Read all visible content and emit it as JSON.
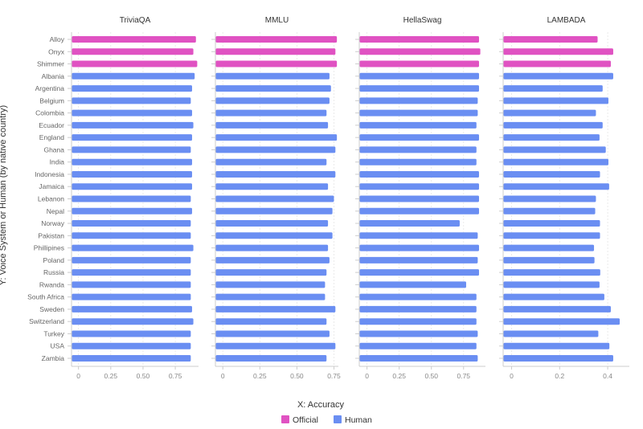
{
  "chart_data": {
    "type": "bar",
    "orientation": "horizontal",
    "xlabel": "X: Accuracy",
    "ylabel": "Y: Voice System or Human (by native country)",
    "legend": {
      "placement": "bottom",
      "entries": [
        {
          "name": "Official",
          "color": "#e052c2"
        },
        {
          "name": "Human",
          "color": "#6a8ef2"
        }
      ]
    },
    "grid": true,
    "categories": [
      "Alloy",
      "Onyx",
      "Shimmer",
      "Albania",
      "Argentina",
      "Belgium",
      "Colombia",
      "Ecuador",
      "England",
      "Ghana",
      "India",
      "Indonesia",
      "Jamaica",
      "Lebanon",
      "Nepal",
      "Norway",
      "Pakistan",
      "Phillipines",
      "Poland",
      "Russia",
      "Rwanda",
      "South Africa",
      "Sweden",
      "Switzerland",
      "Turkey",
      "USA",
      "Zambia"
    ],
    "groups": [
      "Official",
      "Official",
      "Official",
      "Human",
      "Human",
      "Human",
      "Human",
      "Human",
      "Human",
      "Human",
      "Human",
      "Human",
      "Human",
      "Human",
      "Human",
      "Human",
      "Human",
      "Human",
      "Human",
      "Human",
      "Human",
      "Human",
      "Human",
      "Human",
      "Human",
      "Human",
      "Human"
    ],
    "panels": [
      {
        "title": "TriviaQA",
        "xlim": [
          -0.054,
          0.93
        ],
        "ticks": [
          0,
          0.25,
          0.5,
          0.75
        ],
        "tick_labels": [
          "0",
          "0.25",
          "0.50",
          "0.75"
        ],
        "values": [
          0.91,
          0.89,
          0.92,
          0.9,
          0.88,
          0.87,
          0.88,
          0.89,
          0.88,
          0.87,
          0.88,
          0.88,
          0.88,
          0.87,
          0.88,
          0.87,
          0.87,
          0.89,
          0.87,
          0.87,
          0.87,
          0.87,
          0.88,
          0.89,
          0.87,
          0.87,
          0.87
        ]
      },
      {
        "title": "MMLU",
        "xlim": [
          -0.05,
          0.78
        ],
        "ticks": [
          0,
          0.25,
          0.5,
          0.75
        ],
        "tick_labels": [
          "0",
          "0.25",
          "0.50",
          "0.75"
        ],
        "values": [
          0.77,
          0.76,
          0.77,
          0.72,
          0.73,
          0.72,
          0.7,
          0.71,
          0.77,
          0.76,
          0.7,
          0.76,
          0.71,
          0.75,
          0.74,
          0.71,
          0.74,
          0.71,
          0.72,
          0.7,
          0.69,
          0.69,
          0.76,
          0.7,
          0.72,
          0.76,
          0.7
        ]
      },
      {
        "title": "HellaSwag",
        "xlim": [
          -0.06,
          0.92
        ],
        "ticks": [
          0,
          0.25,
          0.5,
          0.75
        ],
        "tick_labels": [
          "0",
          "0.25",
          "0.50",
          "0.75"
        ],
        "values": [
          0.87,
          0.88,
          0.87,
          0.87,
          0.87,
          0.86,
          0.86,
          0.85,
          0.87,
          0.85,
          0.85,
          0.87,
          0.87,
          0.87,
          0.87,
          0.72,
          0.86,
          0.87,
          0.86,
          0.87,
          0.77,
          0.85,
          0.85,
          0.85,
          0.86,
          0.85,
          0.86
        ]
      },
      {
        "title": "LAMBADA",
        "xlim": [
          -0.035,
          0.49
        ],
        "ticks": [
          0,
          0.2,
          0.4
        ],
        "tick_labels": [
          "0",
          "0.2",
          "0.4"
        ],
        "values": [
          0.358,
          0.423,
          0.413,
          0.423,
          0.379,
          0.403,
          0.351,
          0.379,
          0.366,
          0.392,
          0.403,
          0.368,
          0.406,
          0.351,
          0.348,
          0.368,
          0.368,
          0.343,
          0.345,
          0.369,
          0.366,
          0.386,
          0.413,
          0.45,
          0.361,
          0.407,
          0.423
        ]
      }
    ]
  }
}
